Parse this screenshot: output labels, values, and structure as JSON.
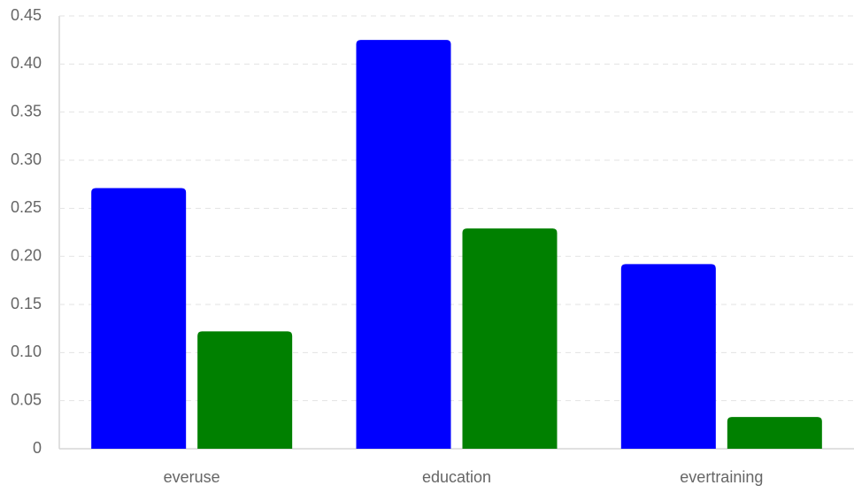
{
  "chart_data": {
    "type": "bar",
    "categories": [
      "everuse",
      "education",
      "evertraining"
    ],
    "series": [
      {
        "color": "#0000ff",
        "values": [
          0.271,
          0.425,
          0.192
        ]
      },
      {
        "color": "#008000",
        "values": [
          0.122,
          0.229,
          0.033
        ]
      }
    ],
    "ylim": [
      0,
      0.45
    ],
    "yticks": [
      0,
      0.05,
      {
        "value": 0.1,
        "label": "0.10"
      },
      0.15,
      {
        "value": 0.2,
        "label": "0.20"
      },
      0.25,
      {
        "value": 0.3,
        "label": "0.30"
      },
      0.35,
      {
        "value": 0.4,
        "label": "0.40"
      },
      0.45
    ],
    "grid": true
  }
}
